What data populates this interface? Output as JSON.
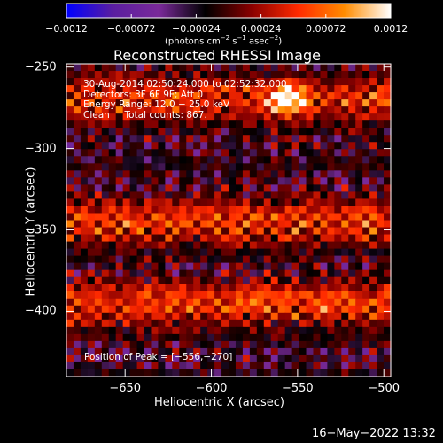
{
  "chart_data": {
    "type": "heatmap",
    "title": "Reconstructed RHESSI Image",
    "xlabel": "Heliocentric X (arcsec)",
    "ylabel": "Heliocentric Y (arcsec)",
    "xlim": [
      -684,
      -496
    ],
    "ylim": [
      -440,
      -248
    ],
    "xticks": [
      "−650",
      "−600",
      "−550",
      "−500"
    ],
    "xtick_values": [
      -650,
      -600,
      -550,
      -500
    ],
    "yticks": [
      "−250",
      "−300",
      "−350",
      "−400"
    ],
    "ytick_values": [
      -250,
      -300,
      -350,
      -400
    ],
    "colorbar": {
      "min": -0.0012,
      "max": 0.0012,
      "tick_labels": [
        "−0.0012",
        "−0.00072",
        "−0.00024",
        "0.00024",
        "0.00072",
        "0.0012"
      ],
      "tick_values": [
        -0.0012,
        -0.00072,
        -0.00024,
        0.00024,
        0.00072,
        0.0012
      ],
      "units_parts": [
        "(photons cm",
        "−2",
        " s",
        "−1",
        " asec",
        "−2",
        ")"
      ],
      "colormap": [
        "#0000ff",
        "#5a1ea0",
        "#7a2a9a",
        "#000000",
        "#8a0000",
        "#ff2a00",
        "#ff8c00",
        "#ffffff"
      ]
    },
    "annotation_lines": [
      "30-Aug-2014 02:50:24.000 to 02:52:32.000",
      "Detectors: 3F 6F 9F; Att 0",
      "Energy Range: 12.0 − 25.0 keV",
      "Clean     Total counts: 867."
    ],
    "peak_text": "Position of Peak = [−556,−270]",
    "peak": {
      "x": -556,
      "y": -270
    },
    "bands": [
      {
        "y_center": -270,
        "strength": 0.8
      },
      {
        "y_center": -345,
        "strength": 0.85
      },
      {
        "y_center": -395,
        "strength": 0.9
      }
    ]
  },
  "timestamp": "16−May−2022 13:32"
}
